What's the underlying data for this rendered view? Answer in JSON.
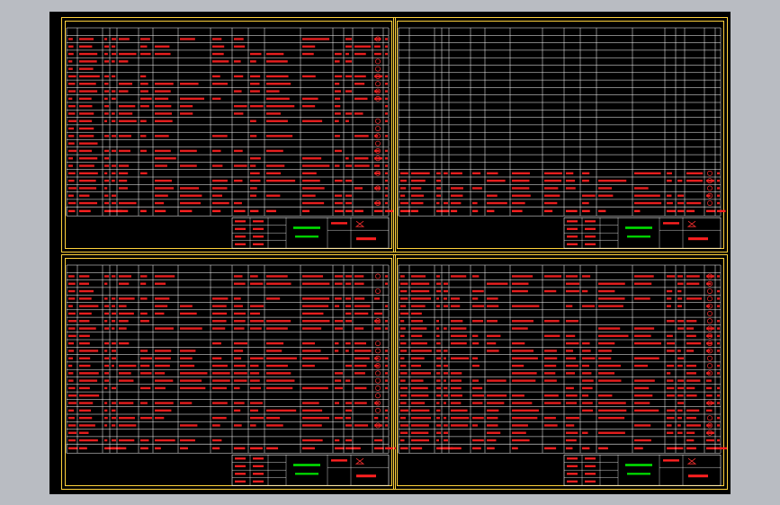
{
  "app": {
    "title": "",
    "view": "CAD drawing viewer"
  },
  "colors": {
    "background": "#b9bcc2",
    "viewport": "#000000",
    "border": "#ffd23c",
    "grid": "#ffffff",
    "text": "#ff2020",
    "accent": "#00e000",
    "symbol": "#ff3030"
  },
  "sheets": [
    {
      "id": "sheet-top-left",
      "rows_filled": 23,
      "rows_empty": 0,
      "stamp_text": "",
      "note": ""
    },
    {
      "id": "sheet-top-right",
      "rows_filled": 5,
      "rows_empty": 18,
      "stamp_text": "",
      "note": ""
    },
    {
      "id": "sheet-bottom-left",
      "rows_filled": 23,
      "rows_empty": 0,
      "stamp_text": "",
      "note": ""
    },
    {
      "id": "sheet-bottom-right",
      "rows_filled": 23,
      "rows_empty": 0,
      "stamp_text": "",
      "note": ""
    }
  ]
}
